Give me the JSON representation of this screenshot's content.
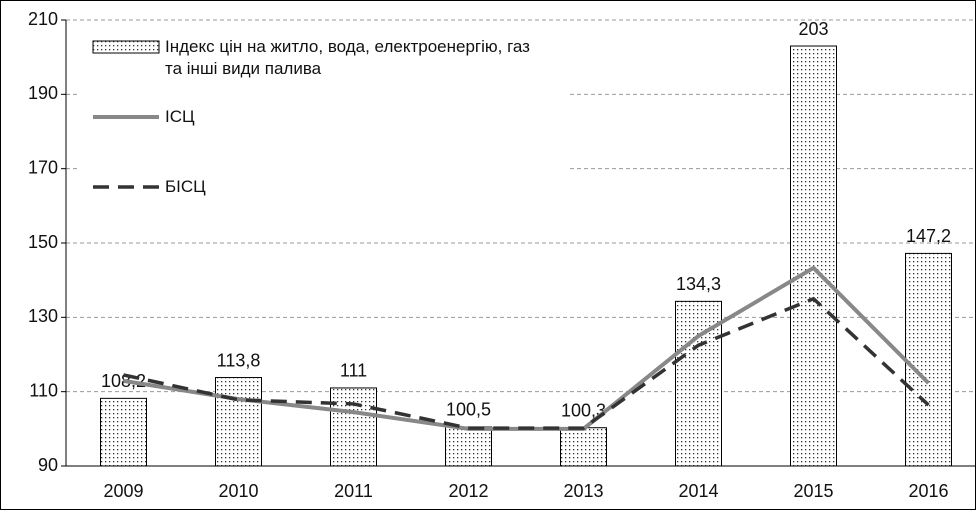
{
  "chart_data": {
    "type": "bar_line",
    "categories": [
      "2009",
      "2010",
      "2011",
      "2012",
      "2013",
      "2014",
      "2015",
      "2016"
    ],
    "series": [
      {
        "name": "Індекс цін на житло, вода, електроенергію, газ та інші види палива",
        "type": "bar",
        "color": "#000000",
        "values": [
          108.2,
          113.8,
          111,
          100.5,
          100.3,
          134.3,
          203,
          147.2
        ],
        "value_labels": [
          "108,2",
          "113,8",
          "111",
          "100,5",
          "100,3",
          "134,3",
          "203",
          "147,2"
        ]
      },
      {
        "name": "ІСЦ",
        "type": "line",
        "color": "#888888",
        "line_style": "solid",
        "values": [
          112.9,
          108,
          104.5,
          100,
          100,
          125,
          143.3,
          112.3
        ]
      },
      {
        "name": "БІСЦ",
        "type": "line",
        "color": "#333333",
        "line_style": "dashed",
        "values": [
          114.5,
          107.8,
          106.7,
          100.2,
          100.2,
          122.5,
          135,
          106.4
        ]
      }
    ],
    "ylim": [
      90,
      210
    ],
    "yticks": [
      90,
      110,
      130,
      150,
      170,
      190,
      210
    ],
    "grid": true,
    "legend": "upper left"
  }
}
